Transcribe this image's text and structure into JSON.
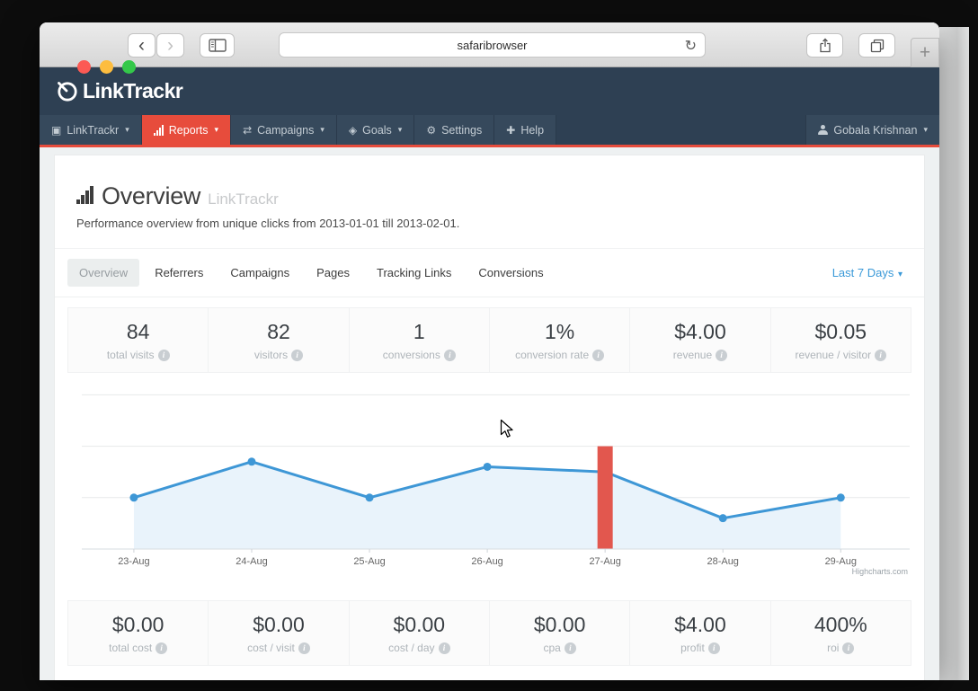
{
  "browser": {
    "url_text": "safaribrowser",
    "back_glyph": "‹",
    "forward_glyph": "›",
    "reload_glyph": "↻",
    "new_tab_glyph": "+"
  },
  "header": {
    "logo_text": "LinkTrackr",
    "navy": "#2e4053",
    "accent_red": "#e74c3c",
    "nav_items": [
      {
        "label": "LinkTrackr",
        "icon": "cube-icon",
        "glyph": "▣",
        "caret": true,
        "active": false
      },
      {
        "label": "Reports",
        "icon": "bar-chart-icon",
        "glyph": "",
        "caret": true,
        "active": true
      },
      {
        "label": "Campaigns",
        "icon": "shuffle-icon",
        "glyph": "⇄",
        "caret": true,
        "active": false
      },
      {
        "label": "Goals",
        "icon": "goals-icon",
        "glyph": "◈",
        "caret": true,
        "active": false
      },
      {
        "label": "Settings",
        "icon": "wrench-icon",
        "glyph": "⚙",
        "caret": false,
        "active": false
      },
      {
        "label": "Help",
        "icon": "medkit-icon",
        "glyph": "✚",
        "caret": false,
        "active": false
      }
    ],
    "user": {
      "label": "Gobala Krishnan",
      "caret": true
    }
  },
  "page": {
    "title": "Overview",
    "title_suffix": "LinkTrackr",
    "subtitle": "Performance overview from unique clicks from 2013-01-01 till 2013-02-01."
  },
  "tabs": [
    {
      "label": "Overview",
      "active": true
    },
    {
      "label": "Referrers",
      "active": false
    },
    {
      "label": "Campaigns",
      "active": false
    },
    {
      "label": "Pages",
      "active": false
    },
    {
      "label": "Tracking Links",
      "active": false
    },
    {
      "label": "Conversions",
      "active": false
    }
  ],
  "date_filter": {
    "label": "Last 7 Days"
  },
  "stats_top": [
    {
      "value": "84",
      "label": "total visits"
    },
    {
      "value": "82",
      "label": "visitors"
    },
    {
      "value": "1",
      "label": "conversions"
    },
    {
      "value": "1%",
      "label": "conversion rate"
    },
    {
      "value": "$4.00",
      "label": "revenue"
    },
    {
      "value": "$0.05",
      "label": "revenue / visitor"
    }
  ],
  "stats_bottom": [
    {
      "value": "$0.00",
      "label": "total cost"
    },
    {
      "value": "$0.00",
      "label": "cost / visit"
    },
    {
      "value": "$0.00",
      "label": "cost / day"
    },
    {
      "value": "$0.00",
      "label": "cpa"
    },
    {
      "value": "$4.00",
      "label": "profit"
    },
    {
      "value": "400%",
      "label": "roi"
    }
  ],
  "chart_data": {
    "type": "area",
    "title": "",
    "categories": [
      "23-Aug",
      "24-Aug",
      "25-Aug",
      "26-Aug",
      "27-Aug",
      "28-Aug",
      "29-Aug"
    ],
    "series": [
      {
        "name": "unique clicks",
        "values": [
          10,
          17,
          10,
          16,
          15,
          6,
          10
        ]
      }
    ],
    "highlight_bar": {
      "category": "27-Aug",
      "value": 20,
      "color": "#e2574e"
    },
    "ylim": [
      0,
      33
    ],
    "gridline_values": [
      10,
      20,
      30
    ],
    "grid_on": true,
    "legend": "none",
    "line_color": "#3e97d6",
    "fill_color": "#e9f3fb",
    "grid_color": "#e7e9ea",
    "axis_color": "#d6dce2",
    "tick_color": "#cfd4d9",
    "label_color": "#666666",
    "credit": "Highcharts.com"
  }
}
